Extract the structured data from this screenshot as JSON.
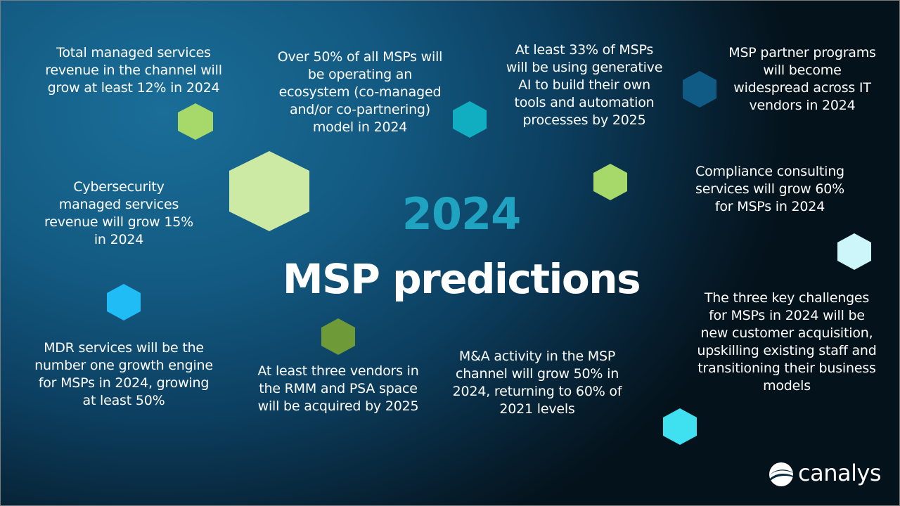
{
  "headline": {
    "year": "2024",
    "title": "MSP predictions"
  },
  "predictions": [
    {
      "text": "Total managed services revenue in the channel will grow at least 12% in 2024"
    },
    {
      "text": "Over 50% of all MSPs will be operating an ecosystem (co-managed and/or co-partnering) model in 2024"
    },
    {
      "text": "At least 33% of MSPs will be using generative AI to build their own tools and automation processes by 2025"
    },
    {
      "text": "MSP partner programs will become widespread across IT vendors in 2024"
    },
    {
      "text": "Cybersecurity managed services revenue will grow 15% in 2024"
    },
    {
      "text": "Compliance consulting services will grow 60% for MSPs in 2024"
    },
    {
      "text": "MDR services will be the number one growth engine for MSPs in 2024, growing at least 50%"
    },
    {
      "text": "At least three vendors in the RMM and PSA space will be acquired by 2025"
    },
    {
      "text": "M&A activity in the MSP channel will grow 50% in 2024, returning to 60% of 2021 levels"
    },
    {
      "text": "The three key challenges for MSPs in 2024 will be new customer acquisition, upskilling existing staff and transitioning their business models"
    }
  ],
  "logo": {
    "name": "canalys"
  },
  "colors": {
    "lime_green": "#a6d86a",
    "pale_green": "#cdeaa4",
    "teal": "#10aec0",
    "dark_blue": "#0f5b86",
    "pale_cyan": "#ccf6fa",
    "sky_blue": "#20bcf5",
    "olive_green": "#6e9a38",
    "aqua": "#3fe0f0",
    "year_blue": "#1fa3c0"
  }
}
